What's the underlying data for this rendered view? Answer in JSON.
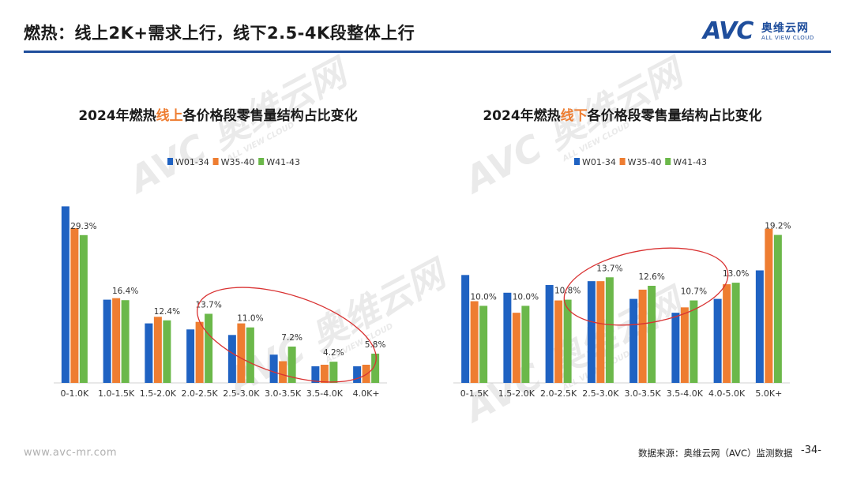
{
  "header": {
    "title": "燃热：线上2K+需求上行，线下2.5-4K段整体上行"
  },
  "logo": {
    "mark": "AVC",
    "name_cn": "奥维云网",
    "name_en": "ALL VIEW CLOUD"
  },
  "watermark": {
    "text": "AVC 奥维云网",
    "sub": "ALL VIEW CLOUD"
  },
  "colors": {
    "series": [
      "#1f62c2",
      "#ee7d31",
      "#6bb84a"
    ],
    "highlight": "#ee7d31",
    "rule": "#1f4e9c",
    "ellipse": "#d93232"
  },
  "chart_data": [
    {
      "type": "bar",
      "title_parts": [
        "2024年燃热",
        "线上",
        "各价格段零售量结构占比变化"
      ],
      "categories": [
        "0-1.0K",
        "1.0-1.5K",
        "1.5-2.0K",
        "2.0-2.5K",
        "2.5-3.0K",
        "3.0-3.5K",
        "3.5-4.0K",
        "4.0K+"
      ],
      "series": [
        {
          "name": "W01-34",
          "values": [
            35.0,
            16.5,
            11.8,
            10.6,
            9.5,
            5.6,
            3.3,
            3.3
          ]
        },
        {
          "name": "W35-40",
          "values": [
            30.7,
            16.8,
            13.1,
            12.1,
            11.8,
            4.3,
            3.6,
            3.6
          ]
        },
        {
          "name": "W41-43",
          "values": [
            29.3,
            16.4,
            12.4,
            13.7,
            11.0,
            7.2,
            4.2,
            5.8
          ]
        }
      ],
      "data_labels": [
        "29.3%",
        "16.4%",
        "12.4%",
        "13.7%",
        "11.0%",
        "7.2%",
        "4.2%",
        "5.8%"
      ],
      "ylim": [
        0,
        36
      ],
      "legend": "top-center",
      "grid": false,
      "annotation": "ellipse around 2.0-2.5K to 4.0K+"
    },
    {
      "type": "bar",
      "title_parts": [
        "2024年燃热",
        "线下",
        "各价格段零售量结构占比变化"
      ],
      "categories": [
        "0-1.5K",
        "1.5-2.0K",
        "2.0-2.5K",
        "2.5-3.0K",
        "3.0-3.5K",
        "3.5-4.0K",
        "4.0-5.0K",
        "5.0K+"
      ],
      "series": [
        {
          "name": "W01-34",
          "values": [
            14.0,
            11.7,
            12.7,
            13.2,
            10.9,
            9.1,
            10.9,
            14.6
          ]
        },
        {
          "name": "W35-40",
          "values": [
            10.6,
            9.1,
            10.7,
            13.2,
            12.1,
            9.8,
            12.8,
            20.0
          ]
        },
        {
          "name": "W41-43",
          "values": [
            10.0,
            10.0,
            10.8,
            13.7,
            12.6,
            10.7,
            13.0,
            19.2
          ]
        }
      ],
      "data_labels": [
        "10.0%",
        "10.0%",
        "10.8%",
        "13.7%",
        "12.6%",
        "10.7%",
        "13.0%",
        "19.2%"
      ],
      "ylim": [
        0,
        21
      ],
      "legend": "top-center",
      "grid": false,
      "annotation": "ellipse around 2.5-3.0K to 3.5-4.0K"
    }
  ],
  "footer": {
    "website": "www.avc-mr.com",
    "source": "数据来源：奥维云网（AVC）监测数据",
    "page": "-34-"
  }
}
